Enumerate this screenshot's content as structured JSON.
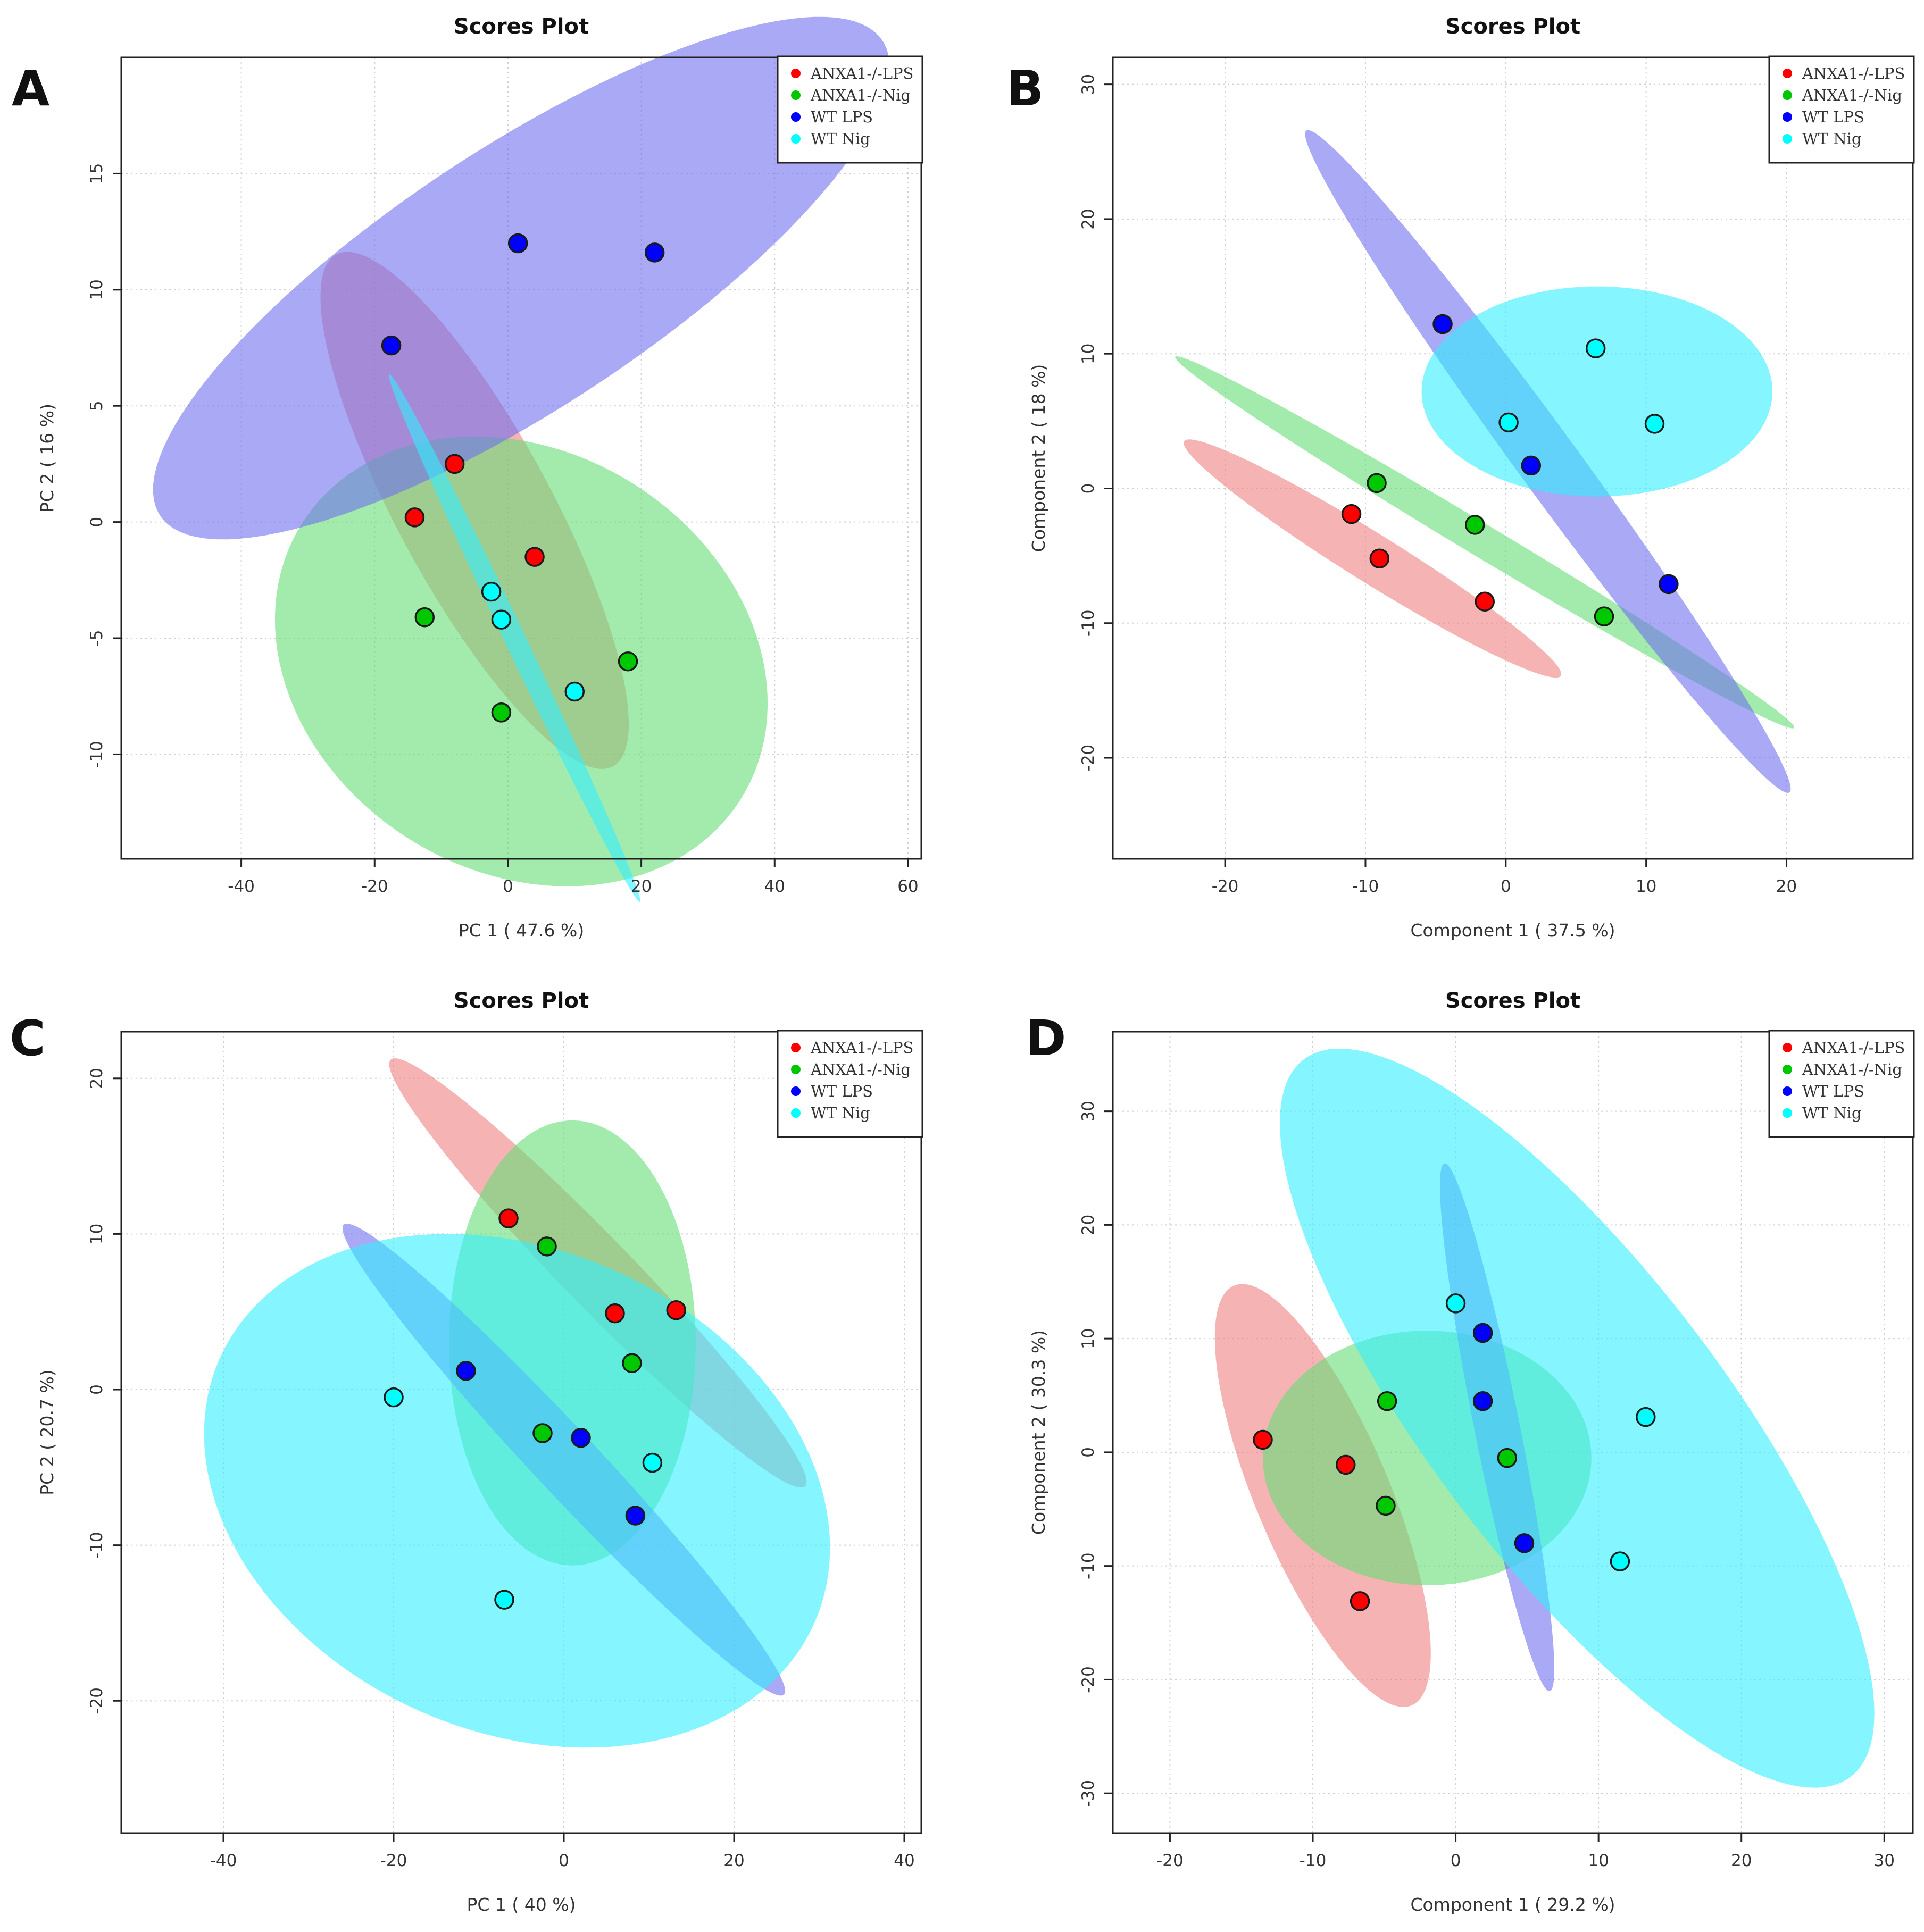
{
  "colors": {
    "ANXA1-/-LPS": "#ff0000",
    "ANXA1-/-Nig": "#00c800",
    "WT LPS": "#0000ff",
    "WT Nig": "#00ffff",
    "ellipse": {
      "ANXA1-/-LPS": "#f08080",
      "ANXA1-/-Nig": "#66dd77",
      "WT LPS": "#7070ee",
      "WT Nig": "#33eeff"
    },
    "background": "#ffffff",
    "frame": "#222222",
    "grid": "#d0d0d0"
  },
  "legend": {
    "entries": [
      "ANXA1-/-LPS",
      "ANXA1-/-Nig",
      "WT LPS",
      "WT Nig"
    ]
  },
  "chart_data": [
    {
      "panel": "A",
      "type": "scatter",
      "title": "Scores Plot",
      "xlabel": "PC 1 ( 47.6 %)",
      "ylabel": "PC 2 ( 16 %)",
      "xlim": [
        -58,
        62
      ],
      "ylim": [
        -14.5,
        20
      ],
      "xticks": [
        -40,
        -20,
        0,
        20,
        40,
        60
      ],
      "yticks": [
        -10,
        -5,
        0,
        5,
        10,
        15
      ],
      "legend_position": "top-right",
      "series": [
        {
          "name": "ANXA1-/-LPS",
          "points": [
            [
              -14,
              0.2
            ],
            [
              -8,
              2.5
            ],
            [
              4,
              -1.5
            ]
          ],
          "ellipse": {
            "cx": -5,
            "cy": 0.5,
            "rx": 25,
            "ry": 5.8,
            "angle": -23
          }
        },
        {
          "name": "ANXA1-/-Nig",
          "points": [
            [
              -12.5,
              -4.1
            ],
            [
              -1,
              -8.2
            ],
            [
              18,
              -6
            ]
          ],
          "ellipse": {
            "cx": 2,
            "cy": -6,
            "rx": 37,
            "ry": 9.5,
            "angle": -3
          }
        },
        {
          "name": "WT LPS",
          "points": [
            [
              -17.5,
              7.6
            ],
            [
              1.5,
              12
            ],
            [
              22,
              11.6
            ]
          ],
          "ellipse": {
            "cx": 2,
            "cy": 10.5,
            "rx": 56,
            "ry": 6.5,
            "angle": 9.5
          }
        },
        {
          "name": "WT Nig",
          "points": [
            [
              -2.5,
              -3
            ],
            [
              -1,
              -4.2
            ],
            [
              10,
              -7.3
            ]
          ],
          "ellipse": {
            "cx": 1,
            "cy": -5,
            "rx": 22,
            "ry": 0.9,
            "angle": -31
          }
        }
      ]
    },
    {
      "panel": "B",
      "type": "scatter",
      "title": "Scores Plot",
      "xlabel": "Component 1 ( 37.5 %)",
      "ylabel": "Component 2 ( 18 %)",
      "xlim": [
        -28,
        29
      ],
      "ylim": [
        -27.5,
        32
      ],
      "xticks": [
        -20,
        -10,
        0,
        10,
        20
      ],
      "yticks": [
        -20,
        -10,
        0,
        10,
        20,
        30
      ],
      "legend_position": "top-right",
      "series": [
        {
          "name": "ANXA1-/-LPS",
          "points": [
            [
              -11,
              -1.9
            ],
            [
              -9,
              -5.2
            ],
            [
              -1.5,
              -8.4
            ]
          ],
          "ellipse": {
            "cx": -9.5,
            "cy": -5.2,
            "rx": 16,
            "ry": 1.8,
            "angle": -33
          }
        },
        {
          "name": "ANXA1-/-Nig",
          "points": [
            [
              -9.2,
              0.4
            ],
            [
              -2.2,
              -2.7
            ],
            [
              7,
              -9.5
            ]
          ],
          "ellipse": {
            "cx": -1.5,
            "cy": -4,
            "rx": 26,
            "ry": 1.2,
            "angle": -32
          }
        },
        {
          "name": "WT LPS",
          "points": [
            [
              -4.5,
              12.2
            ],
            [
              1.8,
              1.7
            ],
            [
              11.6,
              -7.1
            ]
          ],
          "ellipse": {
            "cx": 3,
            "cy": 2,
            "rx": 30,
            "ry": 2.2,
            "angle": -55
          }
        },
        {
          "name": "WT Nig",
          "points": [
            [
              0.2,
              4.9
            ],
            [
              6.4,
              10.4
            ],
            [
              10.6,
              4.8
            ]
          ],
          "ellipse": {
            "cx": 6.5,
            "cy": 7.2,
            "rx": 12.5,
            "ry": 7.8,
            "angle": 0
          }
        }
      ]
    },
    {
      "panel": "C",
      "type": "scatter",
      "title": "Scores Plot",
      "xlabel": "PC 1 ( 40 %)",
      "ylabel": "PC 2 ( 20.7 %)",
      "xlim": [
        -52,
        42
      ],
      "ylim": [
        -28.5,
        23
      ],
      "xticks": [
        -40,
        -20,
        0,
        20,
        40
      ],
      "yticks": [
        -20,
        -10,
        0,
        10,
        20
      ],
      "legend_position": "top-right",
      "series": [
        {
          "name": "ANXA1-/-LPS",
          "points": [
            [
              -6.5,
              11
            ],
            [
              6,
              4.9
            ],
            [
              13.2,
              5.1
            ]
          ],
          "ellipse": {
            "cx": 4,
            "cy": 7.5,
            "rx": 28,
            "ry": 2.8,
            "angle": -29
          }
        },
        {
          "name": "ANXA1-/-Nig",
          "points": [
            [
              -2,
              9.2
            ],
            [
              8,
              1.7
            ],
            [
              -2.5,
              -2.8
            ]
          ],
          "ellipse": {
            "cx": 1,
            "cy": 3,
            "rx": 14.5,
            "ry": 14.3,
            "angle": 0
          }
        },
        {
          "name": "WT LPS",
          "points": [
            [
              -11.5,
              1.2
            ],
            [
              2,
              -3.1
            ],
            [
              8.4,
              -8.1
            ]
          ],
          "ellipse": {
            "cx": 0,
            "cy": -4.5,
            "rx": 30,
            "ry": 2.6,
            "angle": -30
          }
        },
        {
          "name": "WT Nig",
          "points": [
            [
              -20,
              -0.5
            ],
            [
              10.4,
              -4.7
            ],
            [
              -7,
              -13.5
            ]
          ],
          "ellipse": {
            "cx": -5.5,
            "cy": -6.5,
            "rx": 37,
            "ry": 16,
            "angle": -7
          }
        }
      ]
    },
    {
      "panel": "D",
      "type": "scatter",
      "title": "Scores Plot",
      "xlabel": "Component 1 ( 29.2 %)",
      "ylabel": "Component 2 ( 30.3 %)",
      "xlim": [
        -24,
        32
      ],
      "ylim": [
        -33.5,
        37
      ],
      "xticks": [
        -20,
        -10,
        0,
        10,
        20,
        30
      ],
      "yticks": [
        -30,
        -20,
        -10,
        0,
        10,
        20,
        30
      ],
      "legend_position": "top-right",
      "series": [
        {
          "name": "ANXA1-/-LPS",
          "points": [
            [
              -13.5,
              1.1
            ],
            [
              -7.7,
              -1.1
            ],
            [
              -6.7,
              -13.1
            ]
          ],
          "ellipse": {
            "cx": -9.3,
            "cy": -3.8,
            "rx": 19.5,
            "ry": 4.8,
            "angle": -72
          }
        },
        {
          "name": "ANXA1-/-Nig",
          "points": [
            [
              -4.8,
              4.5
            ],
            [
              -4.9,
              -4.7
            ],
            [
              3.6,
              -0.5
            ]
          ],
          "ellipse": {
            "cx": -2,
            "cy": -0.5,
            "rx": 11.5,
            "ry": 11.2,
            "angle": 0
          }
        },
        {
          "name": "WT LPS",
          "points": [
            [
              1.9,
              10.5
            ],
            [
              1.9,
              4.5
            ],
            [
              4.8,
              -8
            ]
          ],
          "ellipse": {
            "cx": 2.9,
            "cy": 2.2,
            "rx": 23.5,
            "ry": 1.6,
            "angle": -81
          }
        },
        {
          "name": "WT Nig",
          "points": [
            [
              0,
              13.1
            ],
            [
              13.3,
              3.1
            ],
            [
              11.5,
              -9.6
            ]
          ],
          "ellipse": {
            "cx": 8.5,
            "cy": 3,
            "rx": 37,
            "ry": 11,
            "angle": -60
          }
        }
      ]
    }
  ]
}
